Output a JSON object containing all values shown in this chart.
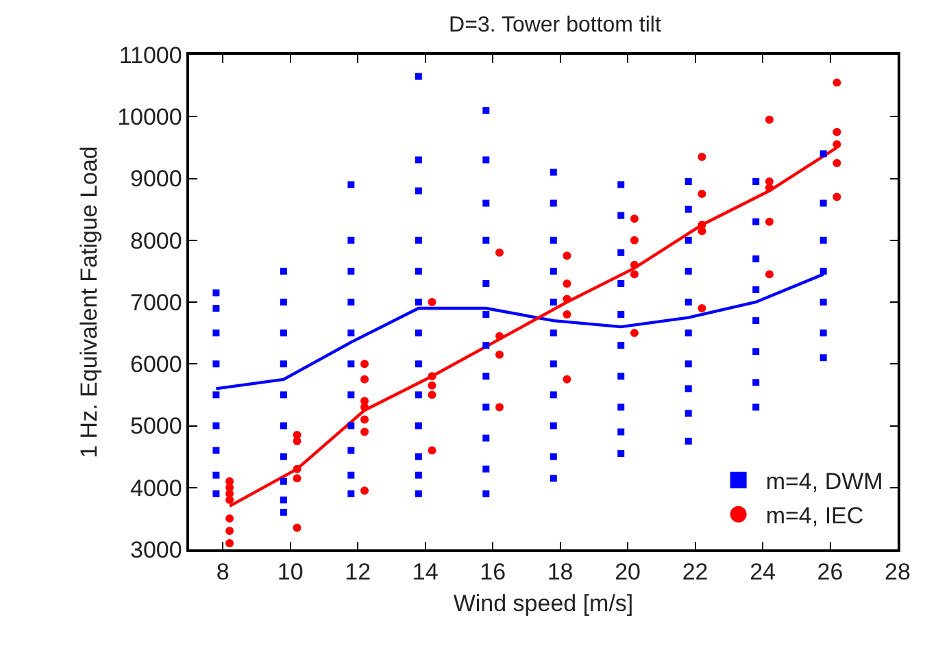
{
  "chart_data": {
    "type": "scatter",
    "title": "D=3. Tower bottom tilt",
    "xlabel": "Wind speed [m/s]",
    "ylabel": "1 Hz. Equivalent Fatigue Load",
    "xlim": [
      7,
      28
    ],
    "xticks": [
      8,
      10,
      12,
      14,
      16,
      18,
      20,
      22,
      24,
      26,
      28
    ],
    "ylim": [
      3000,
      11000
    ],
    "yticks": [
      3000,
      4000,
      5000,
      6000,
      7000,
      8000,
      9000,
      10000,
      11000
    ],
    "grid": false,
    "legend": "bottom right",
    "series": [
      {
        "name": "m=4, DWM",
        "marker": "square",
        "color": "#0000ff",
        "x": [
          7.8,
          7.8,
          7.8,
          7.8,
          7.8,
          7.8,
          7.8,
          7.8,
          7.8,
          9.8,
          9.8,
          9.8,
          9.8,
          9.8,
          9.8,
          9.8,
          9.8,
          9.8,
          9.8,
          11.8,
          11.8,
          11.8,
          11.8,
          11.8,
          11.8,
          11.8,
          11.8,
          11.8,
          11.8,
          11.8,
          13.8,
          13.8,
          13.8,
          13.8,
          13.8,
          13.8,
          13.8,
          13.8,
          13.8,
          13.8,
          13.8,
          13.8,
          13.8,
          15.8,
          15.8,
          15.8,
          15.8,
          15.8,
          15.8,
          15.8,
          15.8,
          15.8,
          15.8,
          15.8,
          15.8,
          17.8,
          17.8,
          17.8,
          17.8,
          17.8,
          17.8,
          17.8,
          17.8,
          17.8,
          17.8,
          17.8,
          19.8,
          19.8,
          19.8,
          19.8,
          19.8,
          19.8,
          19.8,
          19.8,
          19.8,
          19.8,
          21.8,
          21.8,
          21.8,
          21.8,
          21.8,
          21.8,
          21.8,
          21.8,
          21.8,
          21.8,
          23.8,
          23.8,
          23.8,
          23.8,
          23.8,
          23.8,
          23.8,
          23.8,
          25.8,
          25.8,
          25.8,
          25.8,
          25.8,
          25.8,
          25.8
        ],
        "values": [
          3900,
          4200,
          4600,
          5000,
          5500,
          6000,
          6500,
          6900,
          7150,
          3600,
          3800,
          4100,
          4500,
          5000,
          5500,
          6000,
          6500,
          7000,
          7500,
          3900,
          4200,
          4600,
          5000,
          5500,
          6000,
          6500,
          7000,
          7500,
          8000,
          8900,
          3900,
          4200,
          4500,
          5000,
          5500,
          6000,
          6500,
          7000,
          7500,
          8000,
          8800,
          9300,
          10650,
          3900,
          4300,
          4800,
          5300,
          5800,
          6300,
          6800,
          7300,
          8000,
          8600,
          9300,
          10100,
          4150,
          4500,
          5000,
          5500,
          6000,
          6500,
          7000,
          7500,
          8000,
          8600,
          9100,
          4550,
          4900,
          5300,
          5800,
          6300,
          6800,
          7300,
          7800,
          8400,
          8900,
          4750,
          5200,
          5600,
          6000,
          6500,
          7000,
          7500,
          8000,
          8500,
          8950,
          5300,
          5700,
          6200,
          6700,
          7200,
          7700,
          8300,
          8950,
          6100,
          6500,
          7000,
          7500,
          8000,
          8600,
          9400
        ]
      },
      {
        "name": "m=4, IEC",
        "marker": "circle",
        "color": "#ff0000",
        "x": [
          8.2,
          8.2,
          8.2,
          8.2,
          8.2,
          8.2,
          8.2,
          10.2,
          10.2,
          10.2,
          10.2,
          10.2,
          12.2,
          12.2,
          12.2,
          12.2,
          12.2,
          12.2,
          12.2,
          14.2,
          14.2,
          14.2,
          14.2,
          14.2,
          16.2,
          16.2,
          16.2,
          16.2,
          18.2,
          18.2,
          18.2,
          18.2,
          18.2,
          20.2,
          20.2,
          20.2,
          20.2,
          20.2,
          22.2,
          22.2,
          22.2,
          22.2,
          22.2,
          24.2,
          24.2,
          24.2,
          24.2,
          24.2,
          26.2,
          26.2,
          26.2,
          26.2,
          26.2
        ],
        "values": [
          4100,
          4000,
          3900,
          3800,
          3500,
          3300,
          3100,
          4850,
          4750,
          4300,
          4150,
          3350,
          6000,
          5750,
          5400,
          5300,
          5100,
          4900,
          3950,
          7000,
          5800,
          5650,
          5500,
          4600,
          7800,
          6450,
          6150,
          5300,
          7750,
          7300,
          7050,
          6800,
          5750,
          8350,
          8000,
          7600,
          7450,
          6500,
          9350,
          8750,
          8250,
          8150,
          6900,
          9950,
          8950,
          8850,
          8300,
          7450,
          10550,
          9750,
          9550,
          9250,
          8700
        ]
      },
      {
        "type": "line",
        "marker": "none",
        "color": "#0000ff",
        "x": [
          7.8,
          9.8,
          11.8,
          13.8,
          15.8,
          17.8,
          19.8,
          21.8,
          23.8,
          25.8
        ],
        "values": [
          5600,
          5750,
          6350,
          6900,
          6900,
          6700,
          6600,
          6750,
          7000,
          7450
        ]
      },
      {
        "type": "line",
        "marker": "none",
        "color": "#ff0000",
        "x": [
          8.2,
          10.2,
          12.2,
          14.2,
          16.2,
          18.2,
          20.2,
          22.2,
          24.2,
          26.2
        ],
        "values": [
          3700,
          4300,
          5250,
          5800,
          6400,
          7000,
          7550,
          8250,
          8800,
          9500
        ]
      }
    ]
  }
}
